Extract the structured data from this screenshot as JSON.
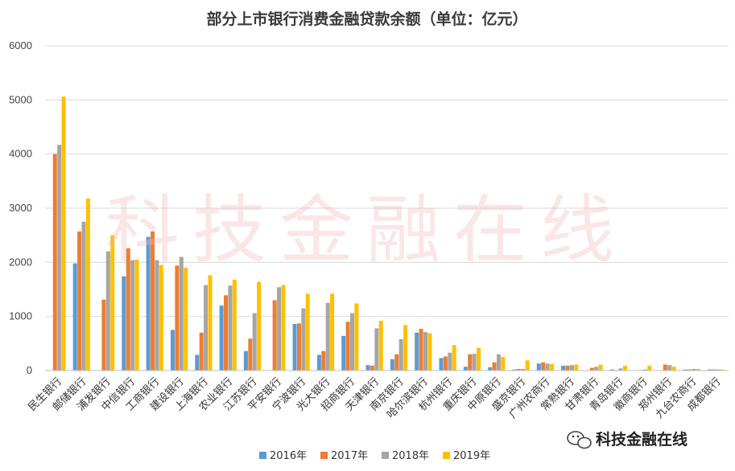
{
  "watermark": "科技金融在线",
  "wechat": {
    "icon": "wechat-icon",
    "label": "科技金融在线"
  },
  "colors": [
    "#5b9bd5",
    "#ed7d31",
    "#a5a5a5",
    "#ffc000"
  ],
  "chart_data": {
    "type": "bar",
    "title": "部分上市银行消费金融贷款余额（单位：亿元）",
    "xlabel": "",
    "ylabel": "",
    "ylim": [
      0,
      6000
    ],
    "yticks": [
      0,
      1000,
      2000,
      3000,
      4000,
      5000,
      6000
    ],
    "grid": true,
    "legend_position": "bottom",
    "categories": [
      "民生银行",
      "邮储银行",
      "浦发银行",
      "中信银行",
      "工商银行",
      "建设银行",
      "上海银行",
      "农业银行",
      "江苏银行",
      "平安银行",
      "宁波银行",
      "光大银行",
      "招商银行",
      "天津银行",
      "南京银行",
      "哈尔滨银行",
      "杭州银行",
      "重庆银行",
      "中原银行",
      "盛京银行",
      "广州农商行",
      "常熟银行",
      "甘肃银行",
      "青岛银行",
      "徽商银行",
      "郑州银行",
      "九台农商行",
      "成都银行"
    ],
    "series": [
      {
        "name": "2016年",
        "values": [
          0,
          1980,
          0,
          1740,
          2470,
          750,
          290,
          1200,
          360,
          0,
          860,
          290,
          640,
          100,
          210,
          700,
          230,
          70,
          60,
          20,
          130,
          90,
          0,
          20,
          0,
          0,
          20,
          20
        ]
      },
      {
        "name": "2017年",
        "values": [
          4000,
          2570,
          1310,
          2260,
          2570,
          1940,
          700,
          1390,
          590,
          1300,
          870,
          360,
          900,
          90,
          300,
          770,
          260,
          300,
          150,
          30,
          150,
          90,
          50,
          10,
          10,
          110,
          20,
          20
        ]
      },
      {
        "name": "2018年",
        "values": [
          4170,
          2750,
          2200,
          2040,
          2040,
          2100,
          1580,
          1570,
          1060,
          1540,
          1150,
          1250,
          1060,
          780,
          580,
          710,
          330,
          310,
          300,
          30,
          130,
          100,
          70,
          40,
          20,
          100,
          30,
          20
        ]
      },
      {
        "name": "2019年",
        "values": [
          5060,
          3180,
          2500,
          2050,
          1950,
          1900,
          1760,
          1680,
          1640,
          1580,
          1420,
          1420,
          1240,
          920,
          840,
          690,
          470,
          420,
          250,
          190,
          120,
          110,
          110,
          90,
          90,
          70,
          30,
          20
        ]
      }
    ]
  }
}
